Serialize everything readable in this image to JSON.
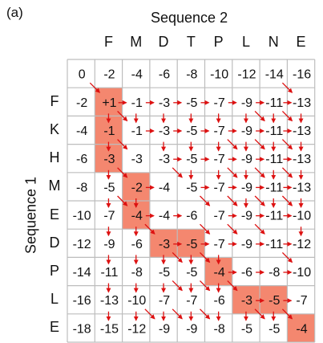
{
  "panel_label": "(a)",
  "sequence2_title": "Sequence 2",
  "sequence1_title": "Sequence 1",
  "sequence2": [
    "F",
    "M",
    "D",
    "T",
    "P",
    "L",
    "N",
    "E"
  ],
  "sequence1": [
    "F",
    "K",
    "H",
    "M",
    "E",
    "D",
    "P",
    "L",
    "E"
  ],
  "colors": {
    "path": "#f4876f",
    "arrow": "#dd1111",
    "grid": "#bdbdbd"
  },
  "matrix": [
    [
      "0",
      "-2",
      "-4",
      "-6",
      "-8",
      "-10",
      "-12",
      "-14",
      "-16"
    ],
    [
      "-2",
      "+1",
      "-1",
      "-3",
      "-5",
      "-7",
      "-9",
      "-11",
      "-13"
    ],
    [
      "-4",
      "-1",
      "-1",
      "-3",
      "-5",
      "-7",
      "-9",
      "-11",
      "-13"
    ],
    [
      "-6",
      "-3",
      "-3",
      "-3",
      "-5",
      "-7",
      "-9",
      "-11",
      "-13"
    ],
    [
      "-8",
      "-5",
      "-2",
      "-4",
      "-5",
      "-7",
      "-9",
      "-11",
      "-13"
    ],
    [
      "-10",
      "-7",
      "-4",
      "-4",
      "-6",
      "-7",
      "-9",
      "-11",
      "-10"
    ],
    [
      "-12",
      "-9",
      "-6",
      "-3",
      "-5",
      "-7",
      "-9",
      "-11",
      "-12"
    ],
    [
      "-14",
      "-11",
      "-8",
      "-5",
      "-5",
      "-4",
      "-6",
      "-8",
      "-10"
    ],
    [
      "-16",
      "-13",
      "-10",
      "-7",
      "-7",
      "-6",
      "-3",
      "-5",
      "-7"
    ],
    [
      "-18",
      "-15",
      "-12",
      "-9",
      "-9",
      "-8",
      "-5",
      "-5",
      "-4"
    ]
  ],
  "path_cells": [
    [
      1,
      1
    ],
    [
      2,
      1
    ],
    [
      3,
      1
    ],
    [
      4,
      2
    ],
    [
      5,
      2
    ],
    [
      6,
      3
    ],
    [
      6,
      4
    ],
    [
      7,
      5
    ],
    [
      8,
      6
    ],
    [
      8,
      7
    ],
    [
      9,
      8
    ]
  ],
  "arrows_diag": [
    [
      1,
      1
    ],
    [
      1,
      8
    ],
    [
      2,
      2
    ],
    [
      2,
      7
    ],
    [
      2,
      8
    ],
    [
      3,
      2
    ],
    [
      3,
      6
    ],
    [
      3,
      7
    ],
    [
      3,
      8
    ],
    [
      4,
      2
    ],
    [
      4,
      4
    ],
    [
      4,
      6
    ],
    [
      4,
      7
    ],
    [
      4,
      8
    ],
    [
      5,
      2
    ],
    [
      5,
      5
    ],
    [
      5,
      6
    ],
    [
      5,
      7
    ],
    [
      5,
      8
    ],
    [
      6,
      3
    ],
    [
      6,
      5
    ],
    [
      6,
      6
    ],
    [
      6,
      7
    ],
    [
      7,
      4
    ],
    [
      7,
      5
    ],
    [
      7,
      8
    ],
    [
      8,
      4
    ],
    [
      8,
      5
    ],
    [
      8,
      6
    ],
    [
      9,
      3
    ],
    [
      9,
      4
    ],
    [
      9,
      5
    ],
    [
      9,
      7
    ],
    [
      9,
      8
    ]
  ],
  "arrows_left": [
    [
      1,
      2
    ],
    [
      1,
      3
    ],
    [
      1,
      4
    ],
    [
      1,
      5
    ],
    [
      1,
      6
    ],
    [
      1,
      7
    ],
    [
      1,
      8
    ],
    [
      2,
      3
    ],
    [
      2,
      4
    ],
    [
      2,
      5
    ],
    [
      2,
      6
    ],
    [
      2,
      7
    ],
    [
      2,
      8
    ],
    [
      3,
      4
    ],
    [
      3,
      5
    ],
    [
      3,
      6
    ],
    [
      3,
      7
    ],
    [
      3,
      8
    ],
    [
      4,
      3
    ],
    [
      4,
      5
    ],
    [
      4,
      6
    ],
    [
      4,
      7
    ],
    [
      4,
      8
    ],
    [
      5,
      3
    ],
    [
      5,
      4
    ],
    [
      5,
      6
    ],
    [
      5,
      7
    ],
    [
      5,
      8
    ],
    [
      6,
      4
    ],
    [
      6,
      5
    ],
    [
      6,
      6
    ],
    [
      6,
      7
    ],
    [
      6,
      8
    ],
    [
      7,
      6
    ],
    [
      7,
      7
    ],
    [
      7,
      8
    ],
    [
      8,
      7
    ],
    [
      8,
      8
    ]
  ],
  "arrows_up": [
    [
      2,
      1
    ],
    [
      2,
      2
    ],
    [
      2,
      3
    ],
    [
      2,
      4
    ],
    [
      2,
      5
    ],
    [
      2,
      6
    ],
    [
      2,
      7
    ],
    [
      2,
      8
    ],
    [
      3,
      1
    ],
    [
      3,
      3
    ],
    [
      3,
      4
    ],
    [
      3,
      5
    ],
    [
      3,
      6
    ],
    [
      3,
      7
    ],
    [
      3,
      8
    ],
    [
      4,
      1
    ],
    [
      4,
      4
    ],
    [
      4,
      5
    ],
    [
      4,
      6
    ],
    [
      4,
      7
    ],
    [
      4,
      8
    ],
    [
      5,
      1
    ],
    [
      5,
      2
    ],
    [
      5,
      6
    ],
    [
      5,
      7
    ],
    [
      5,
      8
    ],
    [
      6,
      1
    ],
    [
      6,
      2
    ],
    [
      6,
      8
    ],
    [
      7,
      1
    ],
    [
      7,
      2
    ],
    [
      7,
      3
    ],
    [
      7,
      4
    ],
    [
      7,
      5
    ],
    [
      8,
      1
    ],
    [
      8,
      2
    ],
    [
      8,
      3
    ],
    [
      8,
      4
    ],
    [
      8,
      5
    ],
    [
      9,
      1
    ],
    [
      9,
      2
    ],
    [
      9,
      3
    ],
    [
      9,
      4
    ],
    [
      9,
      5
    ],
    [
      9,
      6
    ],
    [
      9,
      7
    ]
  ]
}
